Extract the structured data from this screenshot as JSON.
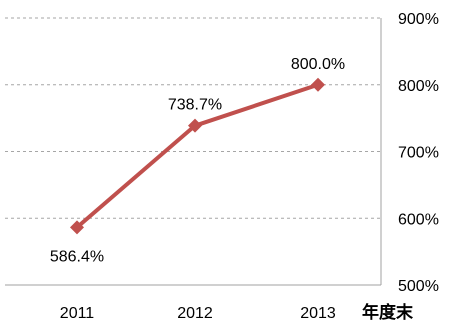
{
  "chart_data": {
    "type": "line",
    "title": "",
    "xlabel": "年度末",
    "ylabel": "",
    "categories": [
      "2011",
      "2012",
      "2013"
    ],
    "series": [
      {
        "values": [
          586.4,
          738.7,
          800.0
        ],
        "value_labels": [
          "586.4%",
          "738.7%",
          "800.0%"
        ],
        "color": "#c0504d",
        "marker": "diamond"
      }
    ],
    "ylim": [
      500,
      900
    ],
    "yticks": [
      500,
      600,
      700,
      800,
      900
    ],
    "ytick_labels": [
      "500%",
      "600%",
      "700%",
      "800%",
      "900%"
    ],
    "y_axis_side": "right",
    "grid": true,
    "grid_style": "dashed",
    "legend": "none"
  }
}
